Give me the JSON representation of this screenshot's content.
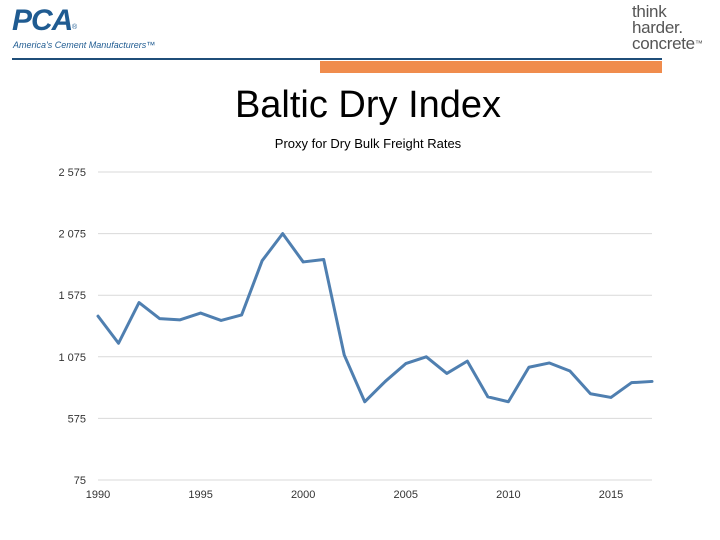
{
  "header": {
    "pca_logo_text": "PCA",
    "pca_reg": "®",
    "pca_tagline": "America's Cement Manufacturers™",
    "think_lines": [
      "think",
      "harder.",
      "concrete"
    ],
    "think_tm": "™"
  },
  "colors": {
    "brand_blue": "#1f5b91",
    "accent_orange": "#f08c4d",
    "line": "#4f7fb0",
    "grid": "#d9d9d9"
  },
  "chart_data": {
    "type": "line",
    "title": "Baltic Dry Index",
    "subtitle": "Proxy for Dry Bulk Freight Rates",
    "xlabel": "",
    "ylabel": "",
    "xlim": [
      1990,
      2017
    ],
    "ylim": [
      75,
      2575
    ],
    "yticks": [
      75,
      575,
      1075,
      1575,
      2075,
      2575
    ],
    "ytick_labels": [
      "75",
      "575",
      "1 075",
      "1 575",
      "2 075",
      "2 575"
    ],
    "xticks": [
      1990,
      1995,
      2000,
      2005,
      2010,
      2015
    ],
    "xtick_labels": [
      "1990",
      "1995",
      "2000",
      "2005",
      "2010",
      "2015"
    ],
    "grid": true,
    "series": [
      {
        "x": [
          1990,
          1991,
          1992,
          1993,
          1994,
          1995,
          1996,
          1997,
          1998,
          1999,
          2000,
          2001,
          2002,
          2003,
          2004,
          2005,
          2006,
          2007,
          2008,
          2009,
          2010,
          2011,
          2012,
          2013,
          2014,
          2015,
          2016,
          2017
        ],
        "values": [
          1405,
          1185,
          1515,
          1385,
          1375,
          1430,
          1370,
          1415,
          1855,
          2075,
          1845,
          1865,
          1090,
          710,
          875,
          1020,
          1075,
          940,
          1040,
          750,
          710,
          990,
          1025,
          960,
          775,
          745,
          865,
          875
        ]
      }
    ]
  }
}
